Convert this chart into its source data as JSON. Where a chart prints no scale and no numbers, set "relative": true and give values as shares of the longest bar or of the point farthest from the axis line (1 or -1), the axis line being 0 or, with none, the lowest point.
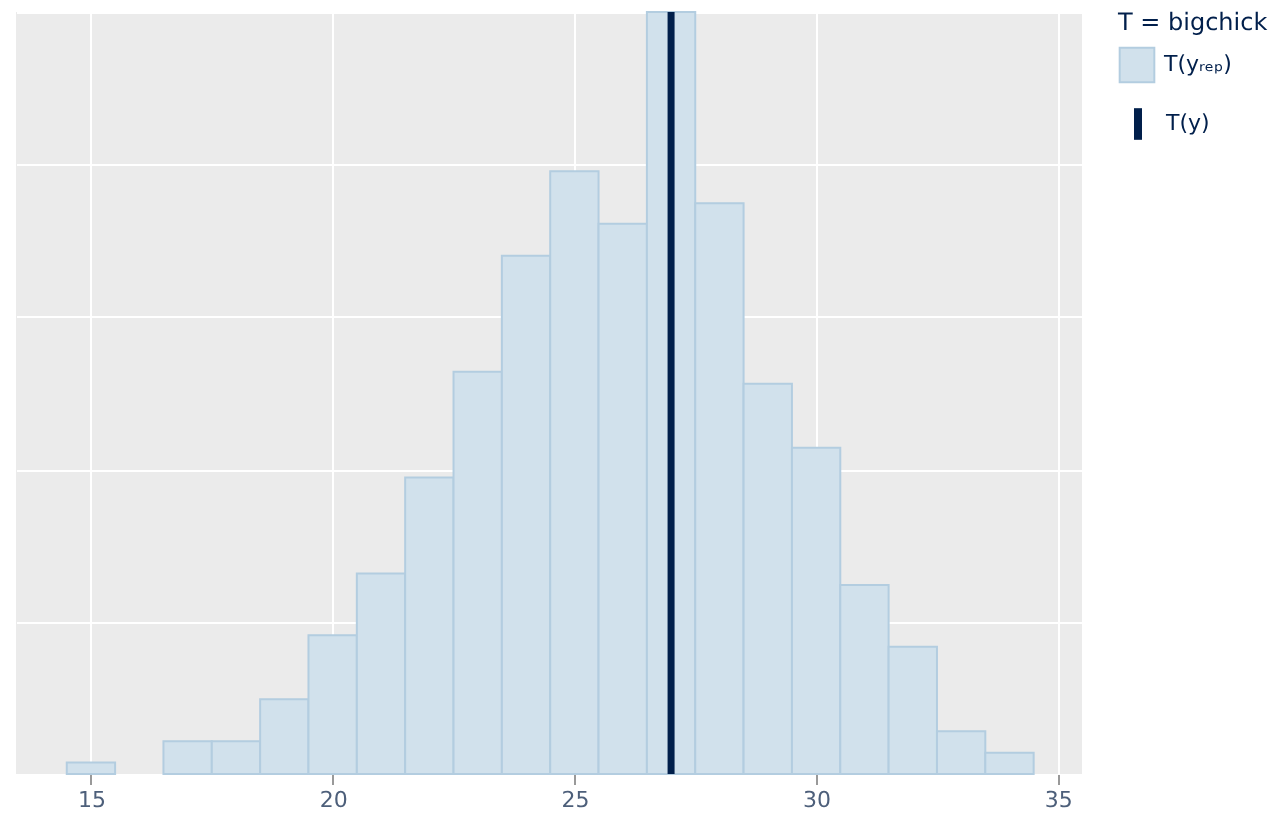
{
  "chart_data": {
    "type": "bar",
    "relative": true,
    "legend_title": "T = bigchick",
    "x": [
      15,
      16,
      17,
      18,
      19,
      20,
      21,
      22,
      23,
      24,
      25,
      26,
      27,
      28,
      29,
      30,
      31,
      32,
      33,
      34
    ],
    "series": [
      {
        "name": "T(yᵣₑₚ)",
        "color": "#d1e1ec",
        "values": [
          0.015,
          0,
          0.043,
          0.043,
          0.098,
          0.182,
          0.263,
          0.389,
          0.528,
          0.68,
          0.791,
          0.722,
          1,
          0.749,
          0.512,
          0.428,
          0.248,
          0.167,
          0.056,
          0.028
        ]
      }
    ],
    "ref_lines": [
      {
        "axis": "x",
        "value": 27,
        "label": "T(y)",
        "color": "#011f4b"
      }
    ],
    "xlim": [
      13.45,
      35.5
    ],
    "xticks": [
      15,
      20,
      25,
      30,
      35
    ],
    "grid": true,
    "legend": "right"
  }
}
